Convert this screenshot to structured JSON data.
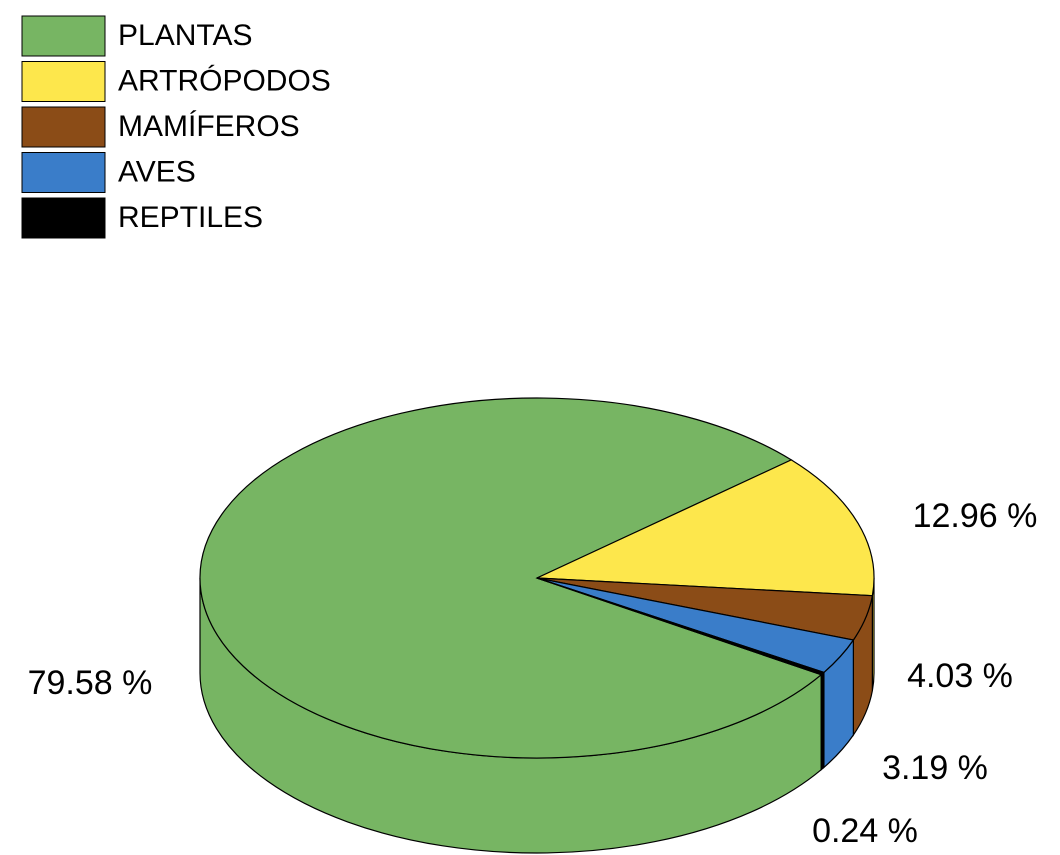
{
  "chart_data": {
    "type": "pie",
    "categories": [
      "PLANTAS",
      "ARTRÓPODOS",
      "MAMÍFEROS",
      "AVES",
      "REPTILES"
    ],
    "values": [
      79.58,
      12.96,
      4.03,
      3.19,
      0.24
    ],
    "value_labels": [
      "79.58 %",
      "12.96 %",
      "4.03 %",
      "3.19 %",
      "0.24 %"
    ],
    "colors": [
      "#77b563",
      "#fde74c",
      "#8b4c17",
      "#3a7dc9",
      "#000000"
    ]
  }
}
